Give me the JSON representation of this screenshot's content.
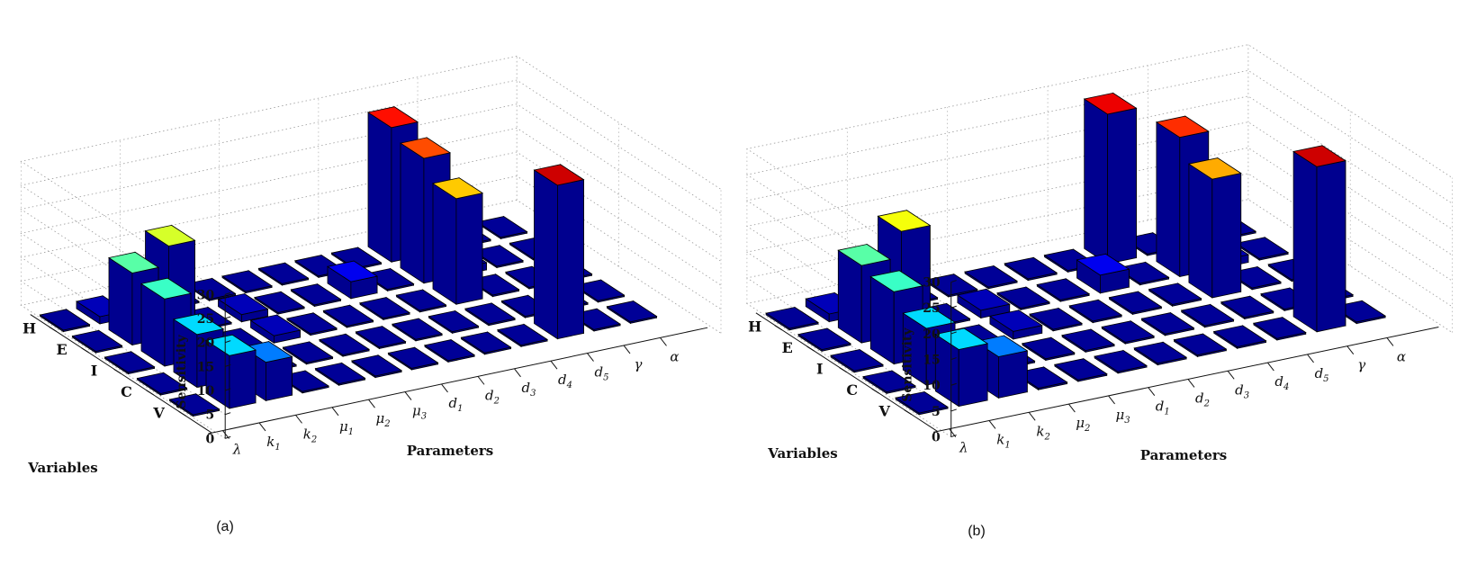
{
  "figure": {
    "panels": [
      {
        "caption": "(a)"
      },
      {
        "caption": "(b)"
      }
    ]
  },
  "chart_data": [
    {
      "type": "bar3d",
      "panel": "(a)",
      "title": "",
      "xlabel": "Parameters",
      "ylabel": "Variables",
      "zlabel": "Sensitivity",
      "zlim": [
        0,
        30
      ],
      "zticks": [
        "0",
        "5",
        "10",
        "15",
        "20",
        "25",
        "30"
      ],
      "parameters": [
        "λ",
        "k1",
        "k2",
        "μ1",
        "μ2",
        "μ3",
        "d1",
        "d2",
        "d3",
        "d4",
        "d5",
        "γ",
        "α"
      ],
      "variables": [
        "H",
        "E",
        "I",
        "C",
        "V"
      ],
      "values": [
        [
          0.3,
          1.5,
          0.3,
          0.3,
          0.3,
          0.3,
          0.3,
          0.3,
          0.3,
          28,
          0.3,
          0.3,
          0.3
        ],
        [
          0.3,
          15,
          19,
          0.3,
          1.5,
          0.3,
          0.3,
          3.5,
          0.3,
          26,
          1.5,
          0.3,
          0.3
        ],
        [
          0.3,
          14,
          0.3,
          0.3,
          1.5,
          0.3,
          0.3,
          0.3,
          0.3,
          22,
          0.3,
          0.3,
          0.3
        ],
        [
          0.3,
          11,
          0.3,
          0.3,
          0.3,
          0.3,
          0.3,
          0.3,
          0.3,
          0.3,
          0.3,
          0.3,
          0.3
        ],
        [
          0.3,
          11,
          8,
          0.3,
          0.3,
          0.3,
          0.3,
          0.3,
          0.3,
          0.3,
          32,
          0.3,
          0.3
        ]
      ]
    },
    {
      "type": "bar3d",
      "panel": "(b)",
      "title": "",
      "xlabel": "Parameters",
      "ylabel": "Variables",
      "zlabel": "Sensitivity",
      "zlim": [
        0,
        30
      ],
      "zticks": [
        "0",
        "5",
        "10",
        "15",
        "20",
        "25",
        "30"
      ],
      "parameters": [
        "λ",
        "k1",
        "k2",
        "μ2",
        "μ3",
        "d1",
        "d2",
        "d3",
        "d4",
        "d5",
        "γ",
        "α"
      ],
      "variables": [
        "H",
        "E",
        "I",
        "C",
        "V"
      ],
      "values": [
        [
          0.3,
          1.5,
          0.3,
          0.3,
          0.3,
          0.3,
          0.3,
          0.3,
          29,
          0.3,
          0.3,
          0.3
        ],
        [
          0.3,
          15,
          20,
          0.3,
          1.5,
          0.3,
          0.3,
          3.5,
          0.3,
          27,
          1.5,
          0.3
        ],
        [
          0.3,
          14,
          0.3,
          0.3,
          1.5,
          0.3,
          0.3,
          0.3,
          0.3,
          23,
          0.3,
          0.3
        ],
        [
          0.3,
          11,
          0.3,
          0.3,
          0.3,
          0.3,
          0.3,
          0.3,
          0.3,
          0.3,
          0.3,
          0.3
        ],
        [
          0.3,
          11,
          8,
          0.3,
          0.3,
          0.3,
          0.3,
          0.3,
          0.3,
          0.3,
          32,
          0.3
        ]
      ]
    }
  ]
}
